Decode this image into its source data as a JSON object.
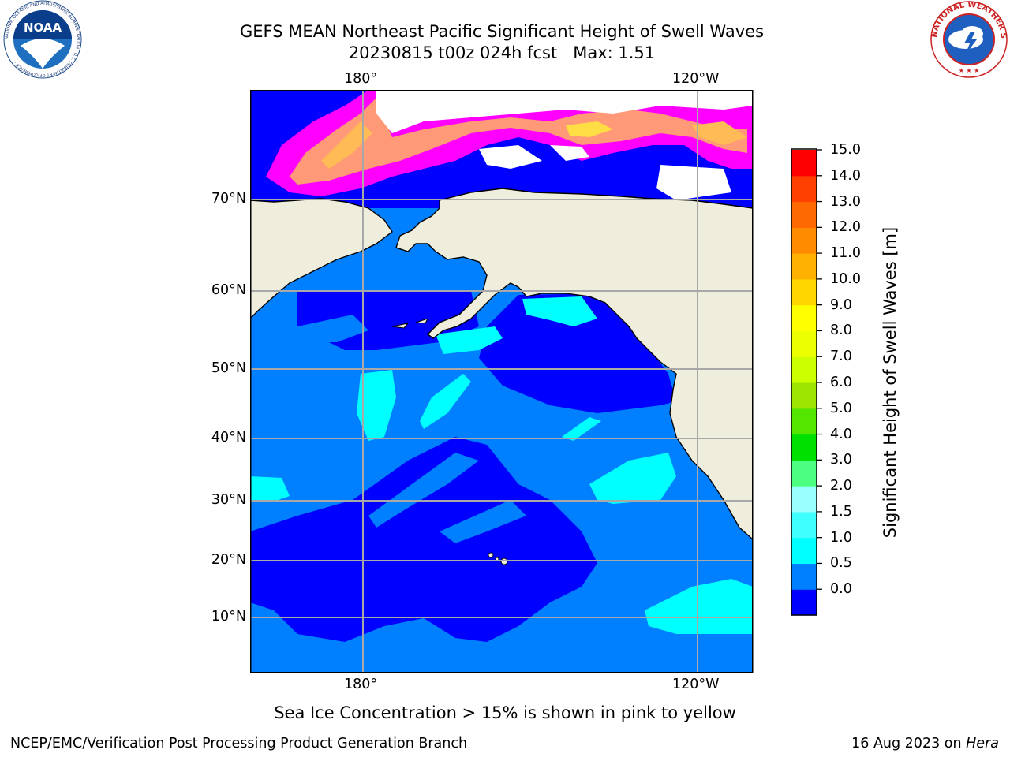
{
  "title": {
    "line1": "GEFS MEAN Northeast Pacific Significant Height of Swell Waves",
    "line2": "20230815 t00z 024h fcst   Max: 1.51"
  },
  "map": {
    "top_lon_labels": [
      "180°",
      "120°W"
    ],
    "bottom_lon_labels": [
      "180°",
      "120°W"
    ],
    "lat_labels": [
      "70°N",
      "60°N",
      "50°N",
      "40°N",
      "30°N",
      "20°N",
      "10°N"
    ],
    "land_color": "#efeedc",
    "ocean_color_0_0p5": "#0000ff",
    "ocean_color_0p5_1": "#0080ff",
    "ocean_color_1_1p5": "#00ffff"
  },
  "colorbar": {
    "label": "Significant Height of Swell Waves [m]",
    "ticks": [
      "15.0",
      "14.0",
      "13.0",
      "12.0",
      "11.0",
      "10.0",
      "9.0",
      "8.0",
      "7.0",
      "6.0",
      "5.0",
      "4.0",
      "3.0",
      "2.0",
      "1.5",
      "1.0",
      "0.5",
      "0.0"
    ],
    "colors_bottom_to_top": [
      "#0000ff",
      "#0080ff",
      "#00ffff",
      "#40ffff",
      "#9affff",
      "#4dff80",
      "#00e000",
      "#55e600",
      "#9de600",
      "#ccff00",
      "#ecff00",
      "#ffff00",
      "#ffd700",
      "#ffb000",
      "#ff8c00",
      "#ff6a00",
      "#ff4000",
      "#ff0000"
    ]
  },
  "sea_ice_palette": [
    "#ff00ff",
    "#ff66cc",
    "#ff9977",
    "#ffbb55",
    "#ffdd44"
  ],
  "logos": {
    "noaa_text": "NOAA",
    "noaa_ring_text": "NATIONAL OCEANIC AND ATMOSPHERIC ADMINISTRATION · U.S. DEPARTMENT OF COMMERCE ·",
    "nws_ring_text": "NATIONAL WEATHER SERVICE"
  },
  "footnote": "Sea Ice Concentration > 15% is shown in pink to yellow",
  "credit": "NCEP/EMC/Verification Post Processing Product Generation Branch",
  "date": {
    "text": "16 Aug 2023 on ",
    "machine": "Hera"
  }
}
